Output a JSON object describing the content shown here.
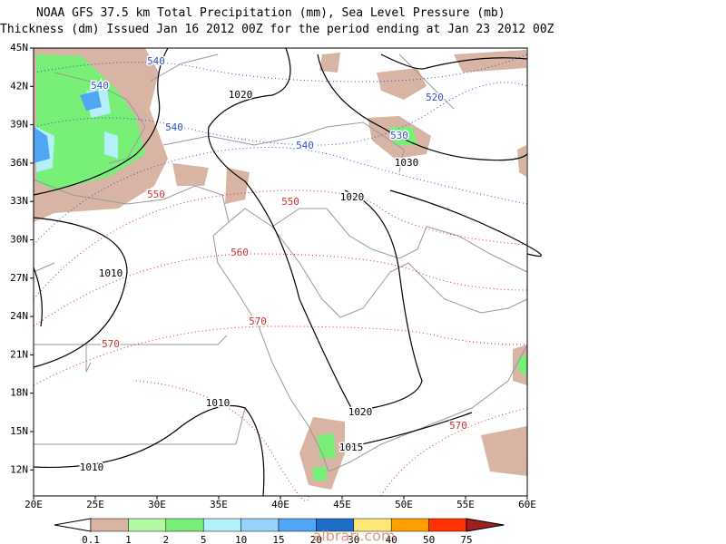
{
  "header": {
    "line1": "NOAA GFS 37.5 km Total Precipitation (mm), Sea Level Pressure (mb)",
    "line2": "Thickness (dm)  Issued Jan 16 2012 00Z for the period ending at Jan 23 2012 00Z"
  },
  "map": {
    "lat_labels": [
      "45N",
      "42N",
      "39N",
      "36N",
      "33N",
      "30N",
      "27N",
      "24N",
      "21N",
      "18N",
      "15N",
      "12N"
    ],
    "lon_labels": [
      "20E",
      "25E",
      "30E",
      "35E",
      "40E",
      "45E",
      "50E",
      "55E",
      "60E"
    ],
    "thickness_labels": [
      "540",
      "540",
      "540",
      "540",
      "520",
      "530",
      "550",
      "550",
      "560",
      "570",
      "570",
      "570"
    ],
    "pressure_labels": [
      "1020",
      "1030",
      "1020",
      "1010",
      "1010",
      "1020",
      "1015",
      "1010"
    ]
  },
  "colorbar": {
    "labels": [
      "0.1",
      "1",
      "2",
      "5",
      "10",
      "15",
      "20",
      "30",
      "40",
      "50",
      "75"
    ],
    "colors": [
      "#d8b4a4",
      "#b4f8a4",
      "#78f078",
      "#b4f0fa",
      "#96d2fa",
      "#50a5f5",
      "#1e6ec8",
      "#ffe878",
      "#ffa000",
      "#ff3200",
      "#a01e1e"
    ]
  },
  "watermark": "albrari.com"
}
